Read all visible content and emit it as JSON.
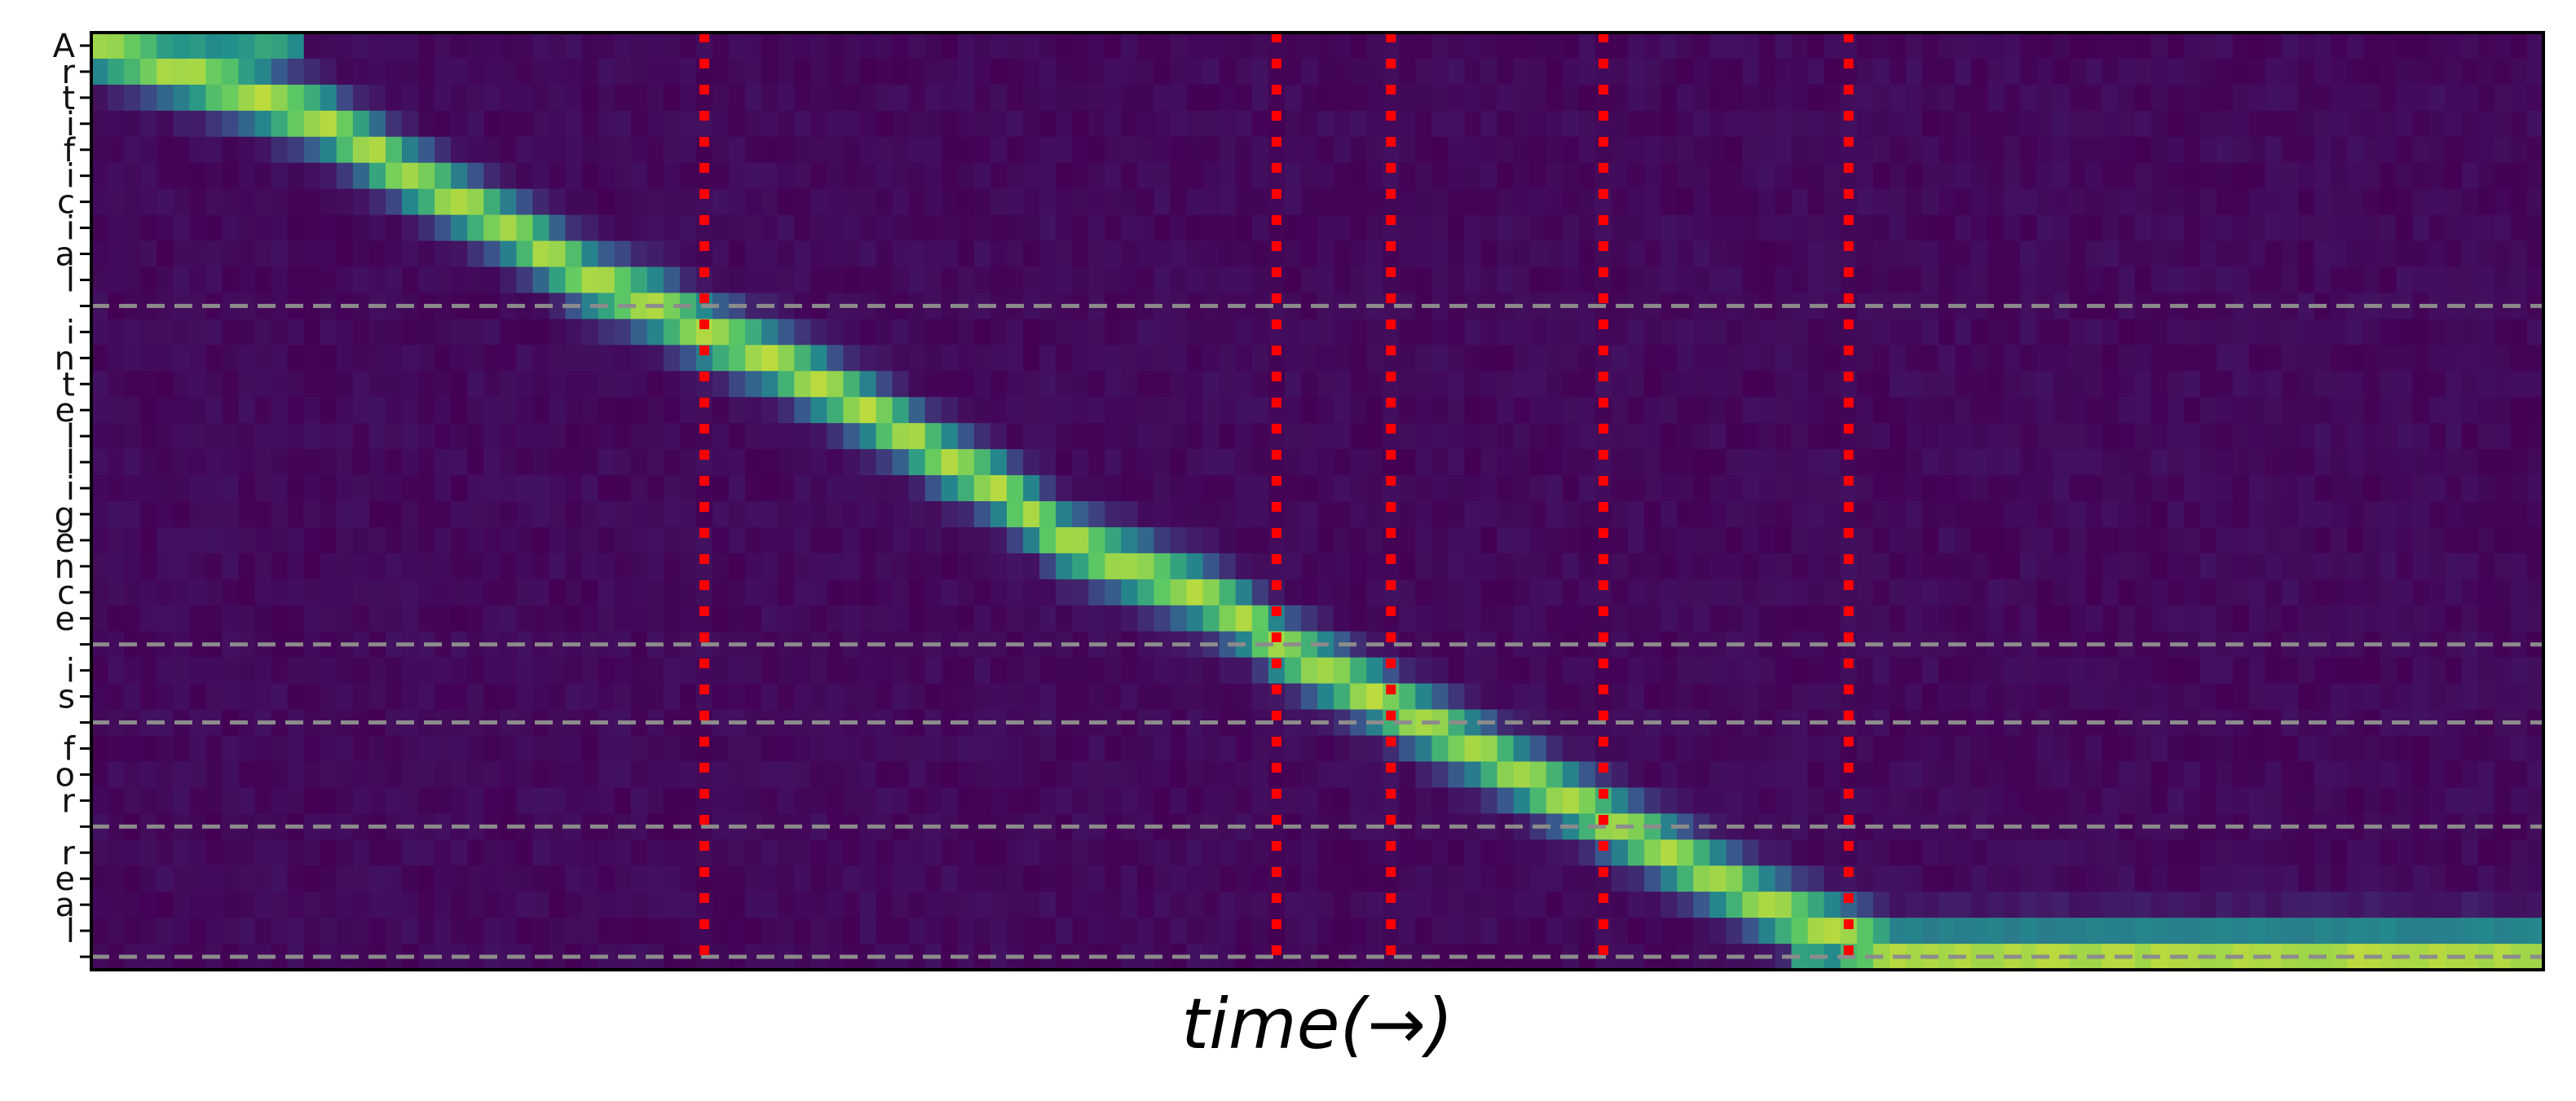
{
  "chart_data": {
    "type": "heatmap",
    "title": "",
    "xlabel": "time(→)",
    "ylabel": "",
    "y_tick_labels": [
      "A",
      "r",
      "t",
      "i",
      "f",
      "i",
      "c",
      "i",
      "a",
      "l",
      "",
      "i",
      "n",
      "t",
      "e",
      "l",
      "l",
      "i",
      "g",
      "e",
      "n",
      "c",
      "e",
      "",
      "i",
      "s",
      "",
      "f",
      "o",
      "r",
      "",
      "r",
      "e",
      "a",
      "l",
      ""
    ],
    "word_boundaries_after_row": [
      10,
      23,
      26,
      30,
      35
    ],
    "time_frames": 150,
    "alignment_path": [
      [
        0,
        0
      ],
      [
        5,
        1
      ],
      [
        10,
        2
      ],
      [
        14,
        3
      ],
      [
        19,
        5
      ],
      [
        25,
        7
      ],
      [
        30,
        9
      ],
      [
        34,
        10
      ],
      [
        37,
        11
      ],
      [
        41,
        12
      ],
      [
        47,
        14
      ],
      [
        52,
        16
      ],
      [
        55,
        17
      ],
      [
        59,
        19
      ],
      [
        63,
        20
      ],
      [
        67,
        21
      ],
      [
        70,
        22
      ],
      [
        72,
        23
      ],
      [
        75,
        24
      ],
      [
        78,
        25
      ],
      [
        81,
        26
      ],
      [
        84,
        27
      ],
      [
        87,
        28
      ],
      [
        90,
        29
      ],
      [
        93,
        30
      ],
      [
        96,
        31
      ],
      [
        99,
        32
      ],
      [
        102,
        33
      ],
      [
        106,
        34
      ],
      [
        110,
        35
      ],
      [
        149,
        35
      ]
    ],
    "alignment_markers_time_index": [
      37,
      72,
      79,
      92,
      107
    ],
    "colormap": "viridis",
    "colors": {
      "low": "#440154",
      "mid": "#21918c",
      "high": "#fde725",
      "word_boundary_line": "#8c8c8c",
      "alignment_marker": "#ff0000"
    },
    "grid": false,
    "legend": "none"
  }
}
